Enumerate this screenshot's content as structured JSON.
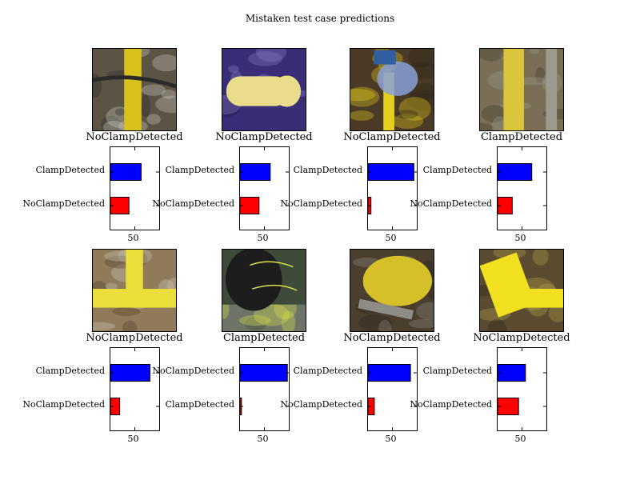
{
  "figure": {
    "title": "Mistaken test case predictions"
  },
  "colors": {
    "clamp_bar": "#0000ff",
    "noclamp_bar": "#ff0000",
    "axis": "#000000"
  },
  "panels": [
    {
      "label": "NoClampDetected",
      "photo": "pipe-with-cables-photo",
      "palette": [
        "#5b5444",
        "#d8c21a",
        "#c9c8c0",
        "#2a2a2a"
      ]
    },
    {
      "label": "NoClampDetected",
      "photo": "yellow-pipe-end-on-purple-mat-photo",
      "palette": [
        "#3a2d78",
        "#e9dc8a",
        "#8a7fbf",
        "#1b1840"
      ]
    },
    {
      "label": "NoClampDetected",
      "photo": "pipe-with-blue-clamp-in-trench-photo",
      "palette": [
        "#4a3a26",
        "#8aa0d8",
        "#e4cf1c",
        "#2c2418"
      ]
    },
    {
      "label": "ClampDetected",
      "photo": "yellow-pipe-against-wall-photo",
      "palette": [
        "#7a6f55",
        "#d9c43a",
        "#9c9a8e",
        "#3f3a2c"
      ]
    },
    {
      "label": "NoClampDetected",
      "photo": "yellow-pipe-fitting-in-sand-photo",
      "palette": [
        "#8f7a5a",
        "#e9de3a",
        "#cfc9b6",
        "#4c3c2a"
      ]
    },
    {
      "label": "ClampDetected",
      "photo": "black-pipe-with-yellow-markings-photo",
      "palette": [
        "#6f7469",
        "#1d1d1d",
        "#d8e24a",
        "#3e4a3a"
      ]
    },
    {
      "label": "NoClampDetected",
      "photo": "yellow-fitting-in-dirt-photo",
      "palette": [
        "#4a3e2e",
        "#d6c02a",
        "#8e8c86",
        "#2a241c"
      ]
    },
    {
      "label": "NoClampDetected",
      "photo": "yellow-pipe-tee-photo",
      "palette": [
        "#5a4a30",
        "#f0e020",
        "#b8a448",
        "#2a2416"
      ]
    }
  ],
  "chart_data": [
    {
      "type": "bar",
      "orientation": "horizontal",
      "categories": [
        "NoClampDetected",
        "ClampDetected"
      ],
      "values": [
        38,
        63
      ],
      "colors": [
        "#ff0000",
        "#0000ff"
      ],
      "xlim": [
        0,
        100
      ],
      "xticks": [
        50
      ]
    },
    {
      "type": "bar",
      "orientation": "horizontal",
      "categories": [
        "NoClampDetected",
        "ClampDetected"
      ],
      "values": [
        39,
        62
      ],
      "colors": [
        "#ff0000",
        "#0000ff"
      ],
      "xlim": [
        0,
        100
      ],
      "xticks": [
        50
      ]
    },
    {
      "type": "bar",
      "orientation": "horizontal",
      "categories": [
        "NoClampDetected",
        "ClampDetected"
      ],
      "values": [
        6,
        94
      ],
      "colors": [
        "#ff0000",
        "#0000ff"
      ],
      "xlim": [
        0,
        100
      ],
      "xticks": [
        50
      ]
    },
    {
      "type": "bar",
      "orientation": "horizontal",
      "categories": [
        "NoClampDetected",
        "ClampDetected"
      ],
      "values": [
        30,
        70
      ],
      "colors": [
        "#ff0000",
        "#0000ff"
      ],
      "xlim": [
        0,
        100
      ],
      "xticks": [
        50
      ]
    },
    {
      "type": "bar",
      "orientation": "horizontal",
      "categories": [
        "NoClampDetected",
        "ClampDetected"
      ],
      "values": [
        19,
        81
      ],
      "colors": [
        "#ff0000",
        "#0000ff"
      ],
      "xlim": [
        0,
        100
      ],
      "xticks": [
        50
      ]
    },
    {
      "type": "bar",
      "orientation": "horizontal",
      "categories": [
        "ClampDetected",
        "NoClampDetected"
      ],
      "values": [
        3,
        97
      ],
      "colors": [
        "#ff0000",
        "#0000ff"
      ],
      "xlim": [
        0,
        100
      ],
      "xticks": [
        50
      ]
    },
    {
      "type": "bar",
      "orientation": "horizontal",
      "categories": [
        "NoClampDetected",
        "ClampDetected"
      ],
      "values": [
        13,
        87
      ],
      "colors": [
        "#ff0000",
        "#0000ff"
      ],
      "xlim": [
        0,
        100
      ],
      "xticks": [
        50
      ]
    },
    {
      "type": "bar",
      "orientation": "horizontal",
      "categories": [
        "NoClampDetected",
        "ClampDetected"
      ],
      "values": [
        43,
        57
      ],
      "colors": [
        "#ff0000",
        "#0000ff"
      ],
      "xlim": [
        0,
        100
      ],
      "xticks": [
        50
      ]
    }
  ]
}
